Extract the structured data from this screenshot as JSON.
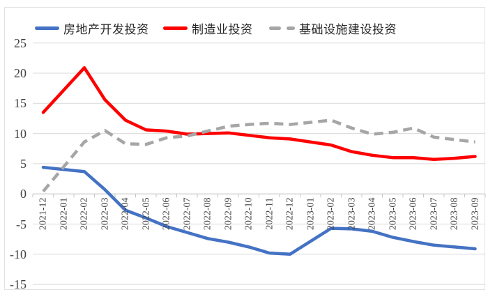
{
  "chart_data": {
    "type": "line",
    "title": "",
    "xlabel": "",
    "ylabel": "",
    "ylim": [
      -15,
      25
    ],
    "y_ticks": [
      25,
      20,
      15,
      10,
      5,
      0,
      -5,
      -10,
      -15
    ],
    "grid": true,
    "legend_position": "top",
    "categories": [
      "2021-12",
      "2022-01",
      "2022-02",
      "2022-03",
      "2022-04",
      "2022-05",
      "2022-06",
      "2022-07",
      "2022-08",
      "2022-09",
      "2022-10",
      "2022-11",
      "2022-12",
      "2023-01",
      "2023-02",
      "2023-03",
      "2023-04",
      "2023-05",
      "2023-06",
      "2023-07",
      "2023-08",
      "2023-09"
    ],
    "series": [
      {
        "name": "房地产开发投资",
        "color": "#4472C4",
        "style": "solid",
        "values": [
          4.4,
          null,
          3.7,
          0.7,
          -2.7,
          -4.0,
          -5.4,
          -6.4,
          -7.4,
          -8.0,
          -8.8,
          -9.8,
          -10.0,
          null,
          -5.7,
          -5.8,
          -6.2,
          -7.2,
          -7.9,
          -8.5,
          -8.8,
          -9.1
        ]
      },
      {
        "name": "制造业投资",
        "color": "#FF0000",
        "style": "solid",
        "values": [
          13.5,
          null,
          20.9,
          15.6,
          12.2,
          10.6,
          10.4,
          9.9,
          10.0,
          10.1,
          9.7,
          9.3,
          9.1,
          null,
          8.1,
          7.0,
          6.4,
          6.0,
          6.0,
          5.7,
          5.9,
          6.2
        ]
      },
      {
        "name": "基础设施建设投资",
        "color": "#A6A6A6",
        "style": "dashed",
        "values": [
          0.4,
          null,
          8.6,
          10.5,
          8.3,
          8.2,
          9.3,
          9.6,
          10.4,
          11.2,
          11.5,
          11.7,
          11.5,
          null,
          12.2,
          10.9,
          9.9,
          10.2,
          10.9,
          9.4,
          9.0,
          8.6
        ]
      }
    ]
  },
  "style": {
    "gridline_color": "#d9d9d9",
    "axis_color": "#c6c6c6",
    "tick_label_color": "#404040",
    "legend_text_color": "#262626",
    "background": "#ffffff"
  }
}
